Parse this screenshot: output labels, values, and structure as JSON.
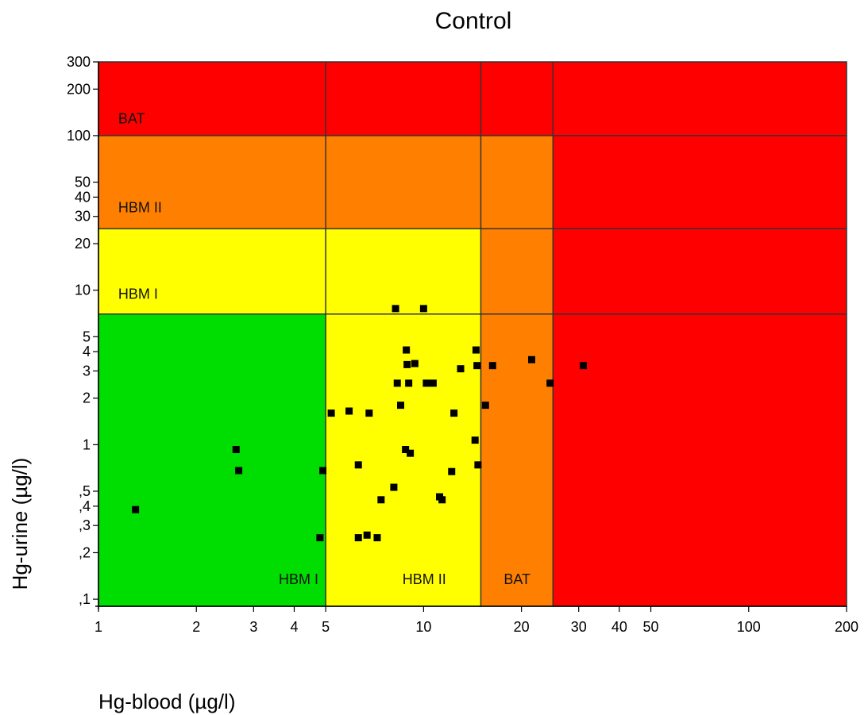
{
  "chart_data": {
    "type": "scatter",
    "title": "Control",
    "xlabel": "Hg-blood (µg/l)",
    "ylabel": "Hg-urine (µg/l)",
    "x_scale": "log",
    "y_scale": "log",
    "xlim": [
      1,
      200
    ],
    "ylim": [
      0.09,
      300
    ],
    "grid": false,
    "x_ticks": [
      {
        "value": 1,
        "label": "1"
      },
      {
        "value": 2,
        "label": "2"
      },
      {
        "value": 3,
        "label": "3"
      },
      {
        "value": 4,
        "label": "4"
      },
      {
        "value": 5,
        "label": "5"
      },
      {
        "value": 10,
        "label": "10"
      },
      {
        "value": 20,
        "label": "20"
      },
      {
        "value": 30,
        "label": "30"
      },
      {
        "value": 40,
        "label": "40"
      },
      {
        "value": 50,
        "label": "50"
      },
      {
        "value": 100,
        "label": "100"
      },
      {
        "value": 200,
        "label": "200"
      }
    ],
    "y_ticks": [
      {
        "value": 0.1,
        "label": ",1"
      },
      {
        "value": 0.2,
        "label": ",2"
      },
      {
        "value": 0.3,
        "label": ",3"
      },
      {
        "value": 0.4,
        "label": ",4"
      },
      {
        "value": 0.5,
        "label": ",5"
      },
      {
        "value": 1,
        "label": "1"
      },
      {
        "value": 2,
        "label": "2"
      },
      {
        "value": 3,
        "label": "3"
      },
      {
        "value": 4,
        "label": "4"
      },
      {
        "value": 5,
        "label": "5"
      },
      {
        "value": 10,
        "label": "10"
      },
      {
        "value": 20,
        "label": "20"
      },
      {
        "value": 30,
        "label": "30"
      },
      {
        "value": 40,
        "label": "40"
      },
      {
        "value": 50,
        "label": "50"
      },
      {
        "value": 100,
        "label": "100"
      },
      {
        "value": 200,
        "label": "200"
      },
      {
        "value": 300,
        "label": "300"
      }
    ],
    "zone_colors": {
      "green": "#00dd00",
      "yellow": "#ffff00",
      "orange": "#ff8000",
      "red": "#ff0000"
    },
    "zones": [
      {
        "x": [
          1,
          5
        ],
        "y": [
          0.09,
          7
        ],
        "color": "green"
      },
      {
        "x": [
          5,
          15
        ],
        "y": [
          0.09,
          7
        ],
        "color": "yellow"
      },
      {
        "x": [
          15,
          25
        ],
        "y": [
          0.09,
          7
        ],
        "color": "orange"
      },
      {
        "x": [
          25,
          200
        ],
        "y": [
          0.09,
          7
        ],
        "color": "red"
      },
      {
        "x": [
          1,
          15
        ],
        "y": [
          7,
          25
        ],
        "color": "yellow"
      },
      {
        "x": [
          15,
          25
        ],
        "y": [
          7,
          25
        ],
        "color": "orange"
      },
      {
        "x": [
          25,
          200
        ],
        "y": [
          7,
          25
        ],
        "color": "red"
      },
      {
        "x": [
          1,
          25
        ],
        "y": [
          25,
          100
        ],
        "color": "orange"
      },
      {
        "x": [
          25,
          200
        ],
        "y": [
          25,
          100
        ],
        "color": "red"
      },
      {
        "x": [
          1,
          200
        ],
        "y": [
          100,
          300
        ],
        "color": "red"
      }
    ],
    "x_boundaries": [
      5,
      15,
      25
    ],
    "y_boundaries": [
      7,
      25,
      100
    ],
    "zone_labels": [
      {
        "text": "BAT",
        "x": 1.15,
        "y": 120,
        "anchor": "start"
      },
      {
        "text": "HBM II",
        "x": 1.15,
        "y": 32,
        "anchor": "start"
      },
      {
        "text": "HBM I",
        "x": 1.15,
        "y": 8.8,
        "anchor": "start"
      },
      {
        "text": "HBM I",
        "x": 4.75,
        "y": 0.125,
        "anchor": "end"
      },
      {
        "text": "HBM II",
        "x": 10.05,
        "y": 0.125,
        "anchor": "middle"
      },
      {
        "text": "BAT",
        "x": 19.4,
        "y": 0.125,
        "anchor": "middle"
      }
    ],
    "series": [
      {
        "marker_color": "#000000",
        "points": [
          {
            "x": 1.3,
            "y": 0.38
          },
          {
            "x": 2.65,
            "y": 0.93
          },
          {
            "x": 2.7,
            "y": 0.68
          },
          {
            "x": 4.8,
            "y": 0.25
          },
          {
            "x": 4.9,
            "y": 0.68
          },
          {
            "x": 5.2,
            "y": 1.6
          },
          {
            "x": 5.9,
            "y": 1.65
          },
          {
            "x": 6.3,
            "y": 0.74
          },
          {
            "x": 6.3,
            "y": 0.25
          },
          {
            "x": 6.7,
            "y": 0.26
          },
          {
            "x": 6.8,
            "y": 1.6
          },
          {
            "x": 7.2,
            "y": 0.25
          },
          {
            "x": 7.4,
            "y": 0.44
          },
          {
            "x": 8.1,
            "y": 0.53
          },
          {
            "x": 8.2,
            "y": 7.6
          },
          {
            "x": 8.3,
            "y": 2.5
          },
          {
            "x": 8.5,
            "y": 1.8
          },
          {
            "x": 8.8,
            "y": 0.93
          },
          {
            "x": 8.85,
            "y": 4.1
          },
          {
            "x": 8.9,
            "y": 3.3
          },
          {
            "x": 9.0,
            "y": 2.5
          },
          {
            "x": 9.1,
            "y": 0.88
          },
          {
            "x": 9.4,
            "y": 3.35
          },
          {
            "x": 10.0,
            "y": 7.6
          },
          {
            "x": 10.2,
            "y": 2.5
          },
          {
            "x": 10.7,
            "y": 2.5
          },
          {
            "x": 11.2,
            "y": 0.46
          },
          {
            "x": 11.4,
            "y": 0.44
          },
          {
            "x": 12.2,
            "y": 0.67
          },
          {
            "x": 12.4,
            "y": 1.6
          },
          {
            "x": 13.0,
            "y": 3.1
          },
          {
            "x": 14.4,
            "y": 1.07
          },
          {
            "x": 14.5,
            "y": 4.1
          },
          {
            "x": 14.6,
            "y": 3.25
          },
          {
            "x": 14.7,
            "y": 0.74
          },
          {
            "x": 15.5,
            "y": 1.8
          },
          {
            "x": 16.3,
            "y": 3.25
          },
          {
            "x": 21.5,
            "y": 3.55
          },
          {
            "x": 24.5,
            "y": 2.5
          },
          {
            "x": 31.0,
            "y": 3.25
          }
        ]
      }
    ]
  }
}
